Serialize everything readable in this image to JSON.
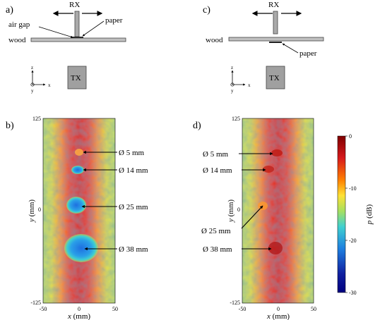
{
  "panels": {
    "a": {
      "label": "a)",
      "rx": "RX",
      "tx": "TX",
      "paper": "paper",
      "air_gap": "air gap",
      "wood": "wood",
      "axis_z": "z",
      "axis_y": "y",
      "axis_x": "x"
    },
    "b": {
      "label": "b)",
      "holes": [
        "Ø 5 mm",
        "Ø 14 mm",
        "Ø 25 mm",
        "Ø 38 mm"
      ],
      "xticks": [
        "-50",
        "0",
        "50"
      ],
      "yticks": [
        "125",
        "0",
        "-125"
      ],
      "xlabel_var": "x",
      "xlabel_unit": " (mm)",
      "ylabel_var": "y",
      "ylabel_unit": " (mm)"
    },
    "c": {
      "label": "c)",
      "rx": "RX",
      "tx": "TX",
      "paper": "paper",
      "wood": "wood",
      "axis_z": "z",
      "axis_y": "y",
      "axis_x": "x"
    },
    "d": {
      "label": "d)",
      "holes": [
        "Ø 5 mm",
        "Ø 14 mm",
        "Ø 25 mm",
        "Ø 38 mm"
      ],
      "xticks": [
        "-50",
        "0",
        "50"
      ],
      "yticks": [
        "125",
        "0",
        "-125"
      ],
      "xlabel_var": "x",
      "xlabel_unit": " (mm)",
      "ylabel_var": "y",
      "ylabel_unit": " (mm)"
    }
  },
  "colorbar": {
    "ticks": [
      "0",
      "-10",
      "-20",
      "-30"
    ],
    "label_var": "p",
    "label_unit": " (dB)",
    "colors": [
      "#7f0000",
      "#d7191c",
      "#ff7f00",
      "#ffe135",
      "#a6e060",
      "#3fd0d0",
      "#1e7fe0",
      "#1020a0",
      "#00007f"
    ]
  },
  "chart_data": [
    {
      "type": "heatmap",
      "panel": "b",
      "xlabel": "x (mm)",
      "ylabel": "y (mm)",
      "xlim": [
        -50,
        50
      ],
      "ylim": [
        -125,
        125
      ],
      "zlabel": "p (dB)",
      "zlim": [
        -30,
        0
      ],
      "annotations": [
        {
          "text": "Ø 5 mm",
          "x": 0,
          "y": 80
        },
        {
          "text": "Ø 14 mm",
          "x": 0,
          "y": 55
        },
        {
          "text": "Ø 25 mm",
          "x": 5,
          "y": 5
        },
        {
          "text": "Ø 38 mm",
          "x": 5,
          "y": -55
        }
      ]
    },
    {
      "type": "heatmap",
      "panel": "d",
      "xlabel": "x (mm)",
      "ylabel": "y (mm)",
      "xlim": [
        -50,
        50
      ],
      "ylim": [
        -125,
        125
      ],
      "zlabel": "p (dB)",
      "zlim": [
        -30,
        0
      ],
      "annotations": [
        {
          "text": "Ø 5 mm",
          "x": 0,
          "y": 80
        },
        {
          "text": "Ø 14 mm",
          "x": -15,
          "y": 55
        },
        {
          "text": "Ø 25 mm",
          "x": -20,
          "y": 5
        },
        {
          "text": "Ø 38 mm",
          "x": -5,
          "y": -55
        }
      ]
    }
  ]
}
